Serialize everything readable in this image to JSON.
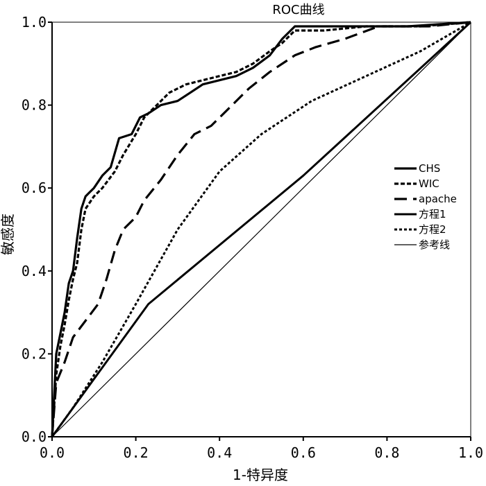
{
  "chart_data": {
    "type": "line",
    "title": "ROC曲线",
    "xlabel": "1-特异度",
    "ylabel": "敏感度",
    "xlim": [
      0,
      1
    ],
    "ylim": [
      0,
      1
    ],
    "x_ticks": [
      "0.0",
      "0.2",
      "0.4",
      "0.6",
      "0.8",
      "1.0"
    ],
    "y_ticks": [
      "0.0",
      "0.2",
      "0.4",
      "0.6",
      "0.8",
      "1.0"
    ],
    "grid": false,
    "legend_position": "right",
    "series": [
      {
        "name": "CHS",
        "style": "solid-thick",
        "color": "#000000",
        "points": [
          [
            0,
            0
          ],
          [
            0.01,
            0.2
          ],
          [
            0.02,
            0.25
          ],
          [
            0.03,
            0.3
          ],
          [
            0.04,
            0.37
          ],
          [
            0.05,
            0.4
          ],
          [
            0.06,
            0.48
          ],
          [
            0.07,
            0.55
          ],
          [
            0.08,
            0.58
          ],
          [
            0.1,
            0.6
          ],
          [
            0.12,
            0.63
          ],
          [
            0.14,
            0.65
          ],
          [
            0.16,
            0.72
          ],
          [
            0.19,
            0.73
          ],
          [
            0.21,
            0.77
          ],
          [
            0.23,
            0.78
          ],
          [
            0.26,
            0.8
          ],
          [
            0.3,
            0.81
          ],
          [
            0.33,
            0.83
          ],
          [
            0.36,
            0.85
          ],
          [
            0.4,
            0.86
          ],
          [
            0.44,
            0.87
          ],
          [
            0.48,
            0.89
          ],
          [
            0.52,
            0.92
          ],
          [
            0.55,
            0.96
          ],
          [
            0.58,
            0.99
          ],
          [
            0.7,
            0.99
          ],
          [
            0.85,
            0.99
          ],
          [
            1.0,
            1.0
          ]
        ]
      },
      {
        "name": "WIC",
        "style": "dashed-thick",
        "color": "#000000",
        "points": [
          [
            0,
            0
          ],
          [
            0.01,
            0.15
          ],
          [
            0.02,
            0.22
          ],
          [
            0.03,
            0.27
          ],
          [
            0.04,
            0.33
          ],
          [
            0.05,
            0.38
          ],
          [
            0.06,
            0.42
          ],
          [
            0.07,
            0.5
          ],
          [
            0.08,
            0.55
          ],
          [
            0.1,
            0.58
          ],
          [
            0.12,
            0.6
          ],
          [
            0.15,
            0.64
          ],
          [
            0.17,
            0.68
          ],
          [
            0.2,
            0.73
          ],
          [
            0.22,
            0.77
          ],
          [
            0.25,
            0.8
          ],
          [
            0.28,
            0.83
          ],
          [
            0.32,
            0.85
          ],
          [
            0.36,
            0.86
          ],
          [
            0.4,
            0.87
          ],
          [
            0.44,
            0.88
          ],
          [
            0.48,
            0.9
          ],
          [
            0.52,
            0.93
          ],
          [
            0.55,
            0.95
          ],
          [
            0.58,
            0.98
          ],
          [
            0.65,
            0.98
          ],
          [
            0.75,
            0.99
          ],
          [
            0.88,
            0.99
          ],
          [
            1.0,
            1.0
          ]
        ]
      },
      {
        "name": "apache",
        "style": "long-dash",
        "color": "#000000",
        "points": [
          [
            0,
            0
          ],
          [
            0.01,
            0.13
          ],
          [
            0.03,
            0.18
          ],
          [
            0.05,
            0.24
          ],
          [
            0.08,
            0.28
          ],
          [
            0.11,
            0.32
          ],
          [
            0.13,
            0.38
          ],
          [
            0.15,
            0.45
          ],
          [
            0.17,
            0.5
          ],
          [
            0.2,
            0.53
          ],
          [
            0.22,
            0.57
          ],
          [
            0.26,
            0.62
          ],
          [
            0.3,
            0.68
          ],
          [
            0.34,
            0.73
          ],
          [
            0.38,
            0.75
          ],
          [
            0.42,
            0.79
          ],
          [
            0.47,
            0.84
          ],
          [
            0.52,
            0.88
          ],
          [
            0.58,
            0.92
          ],
          [
            0.63,
            0.94
          ],
          [
            0.7,
            0.96
          ],
          [
            0.78,
            0.99
          ],
          [
            0.9,
            0.99
          ],
          [
            1.0,
            1.0
          ]
        ]
      },
      {
        "name": "方程1",
        "style": "solid-medium",
        "color": "#000000",
        "points": [
          [
            0,
            0
          ],
          [
            0.23,
            0.32
          ],
          [
            0.6,
            0.63
          ],
          [
            1.0,
            1.0
          ]
        ]
      },
      {
        "name": "方程2",
        "style": "dotted",
        "color": "#000000",
        "points": [
          [
            0,
            0
          ],
          [
            0.05,
            0.07
          ],
          [
            0.12,
            0.18
          ],
          [
            0.2,
            0.32
          ],
          [
            0.3,
            0.5
          ],
          [
            0.4,
            0.64
          ],
          [
            0.5,
            0.73
          ],
          [
            0.62,
            0.81
          ],
          [
            0.75,
            0.87
          ],
          [
            0.88,
            0.93
          ],
          [
            1.0,
            1.0
          ]
        ]
      },
      {
        "name": "参考线",
        "style": "solid-thin",
        "color": "#000000",
        "points": [
          [
            0,
            0
          ],
          [
            1.0,
            1.0
          ]
        ]
      }
    ]
  }
}
